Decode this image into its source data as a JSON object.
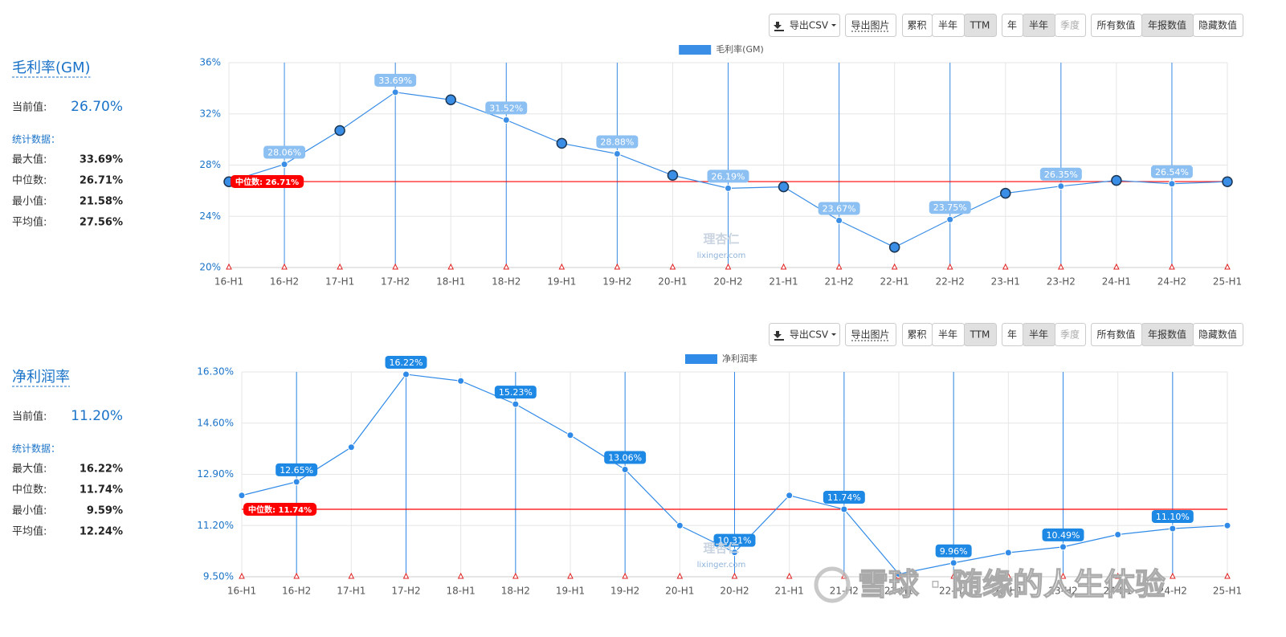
{
  "toolbar": [
    [
      "导出CSV",
      "导出图片"
    ],
    [
      "累积",
      "半年",
      "TTM"
    ],
    [
      "年",
      "半年",
      "季度"
    ],
    [
      "所有数值",
      "年报数值",
      "隐藏数值"
    ]
  ],
  "toolbar_active": [
    [],
    [
      2
    ],
    [
      1
    ],
    [
      1
    ]
  ],
  "panels": [
    {
      "title": "毛利率(GM)",
      "current_label": "当前值:",
      "current_value": "26.70%",
      "stats_title": "统计数据：",
      "stats": [
        [
          "最大值:",
          "33.69%"
        ],
        [
          "中位数:",
          "26.71%"
        ],
        [
          "最小值:",
          "21.58%"
        ],
        [
          "平均值:",
          "27.56%"
        ]
      ]
    },
    {
      "title": "净利润率",
      "current_label": "当前值:",
      "current_value": "11.20%",
      "stats_title": "统计数据：",
      "stats": [
        [
          "最大值:",
          "16.22%"
        ],
        [
          "中位数:",
          "11.74%"
        ],
        [
          "最小值:",
          "9.59%"
        ],
        [
          "平均值:",
          "12.24%"
        ]
      ]
    }
  ],
  "watermarks": {
    "site_cn": "理杏仁",
    "site_en": "lixinger.com",
    "author": "雪球 · 随缘的人生体验"
  },
  "chart_data": [
    {
      "type": "line",
      "categories": [
        "16-H1",
        "16-H2",
        "17-H1",
        "17-H2",
        "18-H1",
        "18-H2",
        "19-H1",
        "19-H2",
        "20-H1",
        "20-H2",
        "21-H1",
        "21-H2",
        "22-H1",
        "22-H2",
        "23-H1",
        "23-H2",
        "24-H1",
        "24-H2",
        "25-H1"
      ],
      "series": [
        {
          "name": "毛利率(GM)",
          "color": "#3a8ee6",
          "label_color": "#8cc0f2",
          "values": [
            26.7,
            28.06,
            30.7,
            33.69,
            33.1,
            31.52,
            29.7,
            28.88,
            27.2,
            26.19,
            26.3,
            23.67,
            21.58,
            23.75,
            25.8,
            26.35,
            26.8,
            26.54,
            26.7
          ],
          "value_labels": [
            null,
            "28.06%",
            null,
            "33.69%",
            null,
            "31.52%",
            null,
            "28.88%",
            null,
            "26.19%",
            null,
            "23.67%",
            null,
            "23.75%",
            null,
            "26.35%",
            null,
            "26.54%",
            null
          ]
        }
      ],
      "large_markers": true,
      "median": {
        "value": 26.71,
        "label": "中位数: 26.71%",
        "color": "#ff0000"
      },
      "ylim": [
        20,
        36
      ],
      "yticks": [
        {
          "value": 20,
          "label": "20%"
        },
        {
          "value": 24,
          "label": "24%"
        },
        {
          "value": 28,
          "label": "28%"
        },
        {
          "value": 32,
          "label": "32%"
        },
        {
          "value": 36,
          "label": "36%"
        }
      ],
      "grid": true,
      "legend": "top"
    },
    {
      "type": "line",
      "categories": [
        "16-H1",
        "16-H2",
        "17-H1",
        "17-H2",
        "18-H1",
        "18-H2",
        "19-H1",
        "19-H2",
        "20-H1",
        "20-H2",
        "21-H1",
        "21-H2",
        "22-H1",
        "22-H2",
        "23-H1",
        "23-H2",
        "24-H1",
        "24-H2",
        "25-H1"
      ],
      "series": [
        {
          "name": "净利润率",
          "color": "#2f8ae8",
          "label_color": "#1e88e5",
          "values": [
            12.2,
            12.65,
            13.8,
            16.22,
            16.0,
            15.23,
            14.2,
            13.06,
            11.2,
            10.31,
            12.2,
            11.74,
            9.59,
            9.96,
            10.3,
            10.49,
            10.9,
            11.1,
            11.2
          ],
          "value_labels": [
            null,
            "12.65%",
            null,
            "16.22%",
            null,
            "15.23%",
            null,
            "13.06%",
            null,
            "10.31%",
            null,
            "11.74%",
            null,
            "9.96%",
            null,
            "10.49%",
            null,
            "11.10%",
            null
          ]
        }
      ],
      "large_markers": false,
      "median": {
        "value": 11.74,
        "label": "中位数: 11.74%",
        "color": "#ff0000"
      },
      "ylim": [
        9.5,
        16.3
      ],
      "yticks": [
        {
          "value": 9.5,
          "label": "9.50%"
        },
        {
          "value": 11.2,
          "label": "11.20%"
        },
        {
          "value": 12.9,
          "label": "12.90%"
        },
        {
          "value": 14.6,
          "label": "14.60%"
        },
        {
          "value": 16.3,
          "label": "16.30%"
        }
      ],
      "grid": true,
      "legend": "top"
    }
  ]
}
